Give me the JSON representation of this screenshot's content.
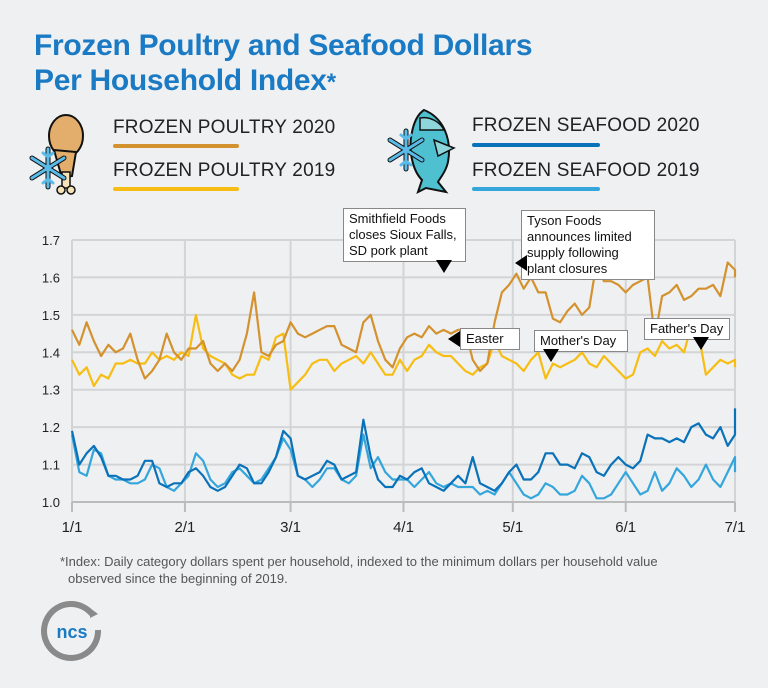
{
  "header": {
    "title_line1": "Frozen Poultry and Seafood Dollars",
    "title_line2": "Per Household Index",
    "title_star": "*"
  },
  "legend": {
    "poultry_2020": {
      "label": "FROZEN POULTRY 2020",
      "color": "#d4922f"
    },
    "poultry_2019": {
      "label": "FROZEN POULTRY 2019",
      "color": "#f7bd12"
    },
    "seafood_2020": {
      "label": "FROZEN SEAFOOD 2020",
      "color": "#0a72b9"
    },
    "seafood_2019": {
      "label": "FROZEN SEAFOOD 2019",
      "color": "#35a6dc"
    },
    "poultry_icon": "chicken-drumstick-snowflake-icon",
    "seafood_icon": "fish-snowflake-icon"
  },
  "annotations": {
    "smithfield": [
      "Smithfield Foods",
      "closes Sioux Falls,",
      "SD pork plant"
    ],
    "tyson": [
      "Tyson Foods",
      "announces limited",
      "supply following",
      "plant closures"
    ],
    "easter": "Easter",
    "mothers_day": "Mother's Day",
    "fathers_day": "Father's Day"
  },
  "footnote": {
    "line1": "*Index: Daily category dollars spent per household, indexed to the minimum dollars per household value",
    "line2": "observed since the beginning of 2019."
  },
  "logo": {
    "text": "ncs",
    "ring_color": "#8a8a8a",
    "text_color": "#1a7ac4"
  },
  "chart_data": {
    "type": "line",
    "title": "Frozen Poultry and Seafood Dollars Per Household Index*",
    "xlabel": "",
    "ylabel": "",
    "x_ticks": [
      "1/1",
      "2/1",
      "3/1",
      "4/1",
      "5/1",
      "6/1",
      "7/1"
    ],
    "x_tick_days": [
      0,
      31,
      60,
      91,
      121,
      152,
      182
    ],
    "y_ticks": [
      "1.0",
      "1.1",
      "1.2",
      "1.3",
      "1.4",
      "1.5",
      "1.6",
      "1.7"
    ],
    "ylim": [
      1.0,
      1.7
    ],
    "xlim_days": [
      0,
      182
    ],
    "grid": true,
    "legend_position": "top",
    "x_step_days": 2,
    "series": [
      {
        "name": "FROZEN POULTRY 2020",
        "color": "#d4922f",
        "values": [
          1.46,
          1.42,
          1.48,
          1.43,
          1.39,
          1.42,
          1.4,
          1.41,
          1.45,
          1.38,
          1.33,
          1.35,
          1.38,
          1.45,
          1.4,
          1.38,
          1.41,
          1.41,
          1.43,
          1.37,
          1.35,
          1.37,
          1.35,
          1.38,
          1.45,
          1.56,
          1.4,
          1.39,
          1.42,
          1.43,
          1.48,
          1.45,
          1.44,
          1.45,
          1.46,
          1.47,
          1.47,
          1.42,
          1.41,
          1.4,
          1.48,
          1.5,
          1.43,
          1.38,
          1.36,
          1.41,
          1.44,
          1.45,
          1.44,
          1.47,
          1.45,
          1.46,
          1.45,
          1.46,
          1.46,
          1.38,
          1.35,
          1.37,
          1.48,
          1.56,
          1.58,
          1.61,
          1.57,
          1.6,
          1.56,
          1.56,
          1.49,
          1.48,
          1.51,
          1.53,
          1.5,
          1.52,
          1.64,
          1.59,
          1.59,
          1.58,
          1.56,
          1.58,
          1.59,
          1.6,
          1.44,
          1.55,
          1.56,
          1.58,
          1.54,
          1.55,
          1.57,
          1.57,
          1.58,
          1.55,
          1.64,
          1.62,
          1.6
        ]
      },
      {
        "name": "FROZEN POULTRY 2019",
        "color": "#f7bd12",
        "values": [
          1.38,
          1.34,
          1.36,
          1.31,
          1.34,
          1.33,
          1.37,
          1.37,
          1.38,
          1.37,
          1.37,
          1.4,
          1.38,
          1.39,
          1.38,
          1.4,
          1.39,
          1.5,
          1.41,
          1.39,
          1.38,
          1.37,
          1.34,
          1.33,
          1.34,
          1.34,
          1.39,
          1.38,
          1.44,
          1.45,
          1.3,
          1.32,
          1.34,
          1.37,
          1.38,
          1.38,
          1.35,
          1.37,
          1.38,
          1.39,
          1.37,
          1.4,
          1.37,
          1.34,
          1.34,
          1.38,
          1.35,
          1.38,
          1.39,
          1.42,
          1.4,
          1.39,
          1.39,
          1.37,
          1.35,
          1.34,
          1.36,
          1.37,
          1.43,
          1.39,
          1.38,
          1.37,
          1.35,
          1.38,
          1.4,
          1.33,
          1.37,
          1.36,
          1.37,
          1.38,
          1.4,
          1.37,
          1.36,
          1.39,
          1.37,
          1.35,
          1.33,
          1.34,
          1.4,
          1.41,
          1.39,
          1.43,
          1.41,
          1.42,
          1.4,
          1.47,
          1.45,
          1.34,
          1.36,
          1.38,
          1.37,
          1.38,
          1.36
        ]
      },
      {
        "name": "FROZEN SEAFOOD 2020",
        "color": "#0a72b9",
        "values": [
          1.19,
          1.1,
          1.13,
          1.15,
          1.12,
          1.07,
          1.07,
          1.06,
          1.06,
          1.07,
          1.11,
          1.11,
          1.05,
          1.04,
          1.05,
          1.05,
          1.08,
          1.09,
          1.07,
          1.04,
          1.03,
          1.04,
          1.07,
          1.1,
          1.09,
          1.05,
          1.05,
          1.08,
          1.12,
          1.19,
          1.17,
          1.07,
          1.06,
          1.07,
          1.08,
          1.11,
          1.1,
          1.06,
          1.07,
          1.08,
          1.22,
          1.12,
          1.06,
          1.04,
          1.04,
          1.07,
          1.06,
          1.08,
          1.09,
          1.05,
          1.04,
          1.03,
          1.05,
          1.07,
          1.05,
          1.12,
          1.05,
          1.04,
          1.03,
          1.05,
          1.08,
          1.1,
          1.06,
          1.06,
          1.08,
          1.13,
          1.13,
          1.1,
          1.1,
          1.09,
          1.13,
          1.12,
          1.08,
          1.07,
          1.1,
          1.12,
          1.1,
          1.09,
          1.11,
          1.18,
          1.17,
          1.17,
          1.16,
          1.17,
          1.16,
          1.2,
          1.21,
          1.18,
          1.17,
          1.2,
          1.15,
          1.18,
          1.25
        ]
      },
      {
        "name": "FROZEN SEAFOOD 2019",
        "color": "#35a6dc",
        "values": [
          1.18,
          1.08,
          1.07,
          1.14,
          1.13,
          1.07,
          1.06,
          1.06,
          1.05,
          1.05,
          1.06,
          1.1,
          1.09,
          1.04,
          1.03,
          1.05,
          1.07,
          1.13,
          1.11,
          1.06,
          1.04,
          1.05,
          1.08,
          1.09,
          1.07,
          1.05,
          1.06,
          1.09,
          1.12,
          1.17,
          1.14,
          1.07,
          1.06,
          1.04,
          1.06,
          1.09,
          1.09,
          1.06,
          1.05,
          1.07,
          1.18,
          1.09,
          1.12,
          1.08,
          1.06,
          1.06,
          1.06,
          1.04,
          1.06,
          1.08,
          1.05,
          1.04,
          1.05,
          1.04,
          1.04,
          1.04,
          1.02,
          1.03,
          1.02,
          1.05,
          1.08,
          1.05,
          1.02,
          1.01,
          1.02,
          1.05,
          1.04,
          1.02,
          1.02,
          1.03,
          1.07,
          1.05,
          1.01,
          1.01,
          1.02,
          1.05,
          1.08,
          1.05,
          1.02,
          1.03,
          1.08,
          1.03,
          1.05,
          1.09,
          1.07,
          1.04,
          1.06,
          1.1,
          1.06,
          1.04,
          1.08,
          1.12,
          1.08
        ]
      }
    ]
  }
}
